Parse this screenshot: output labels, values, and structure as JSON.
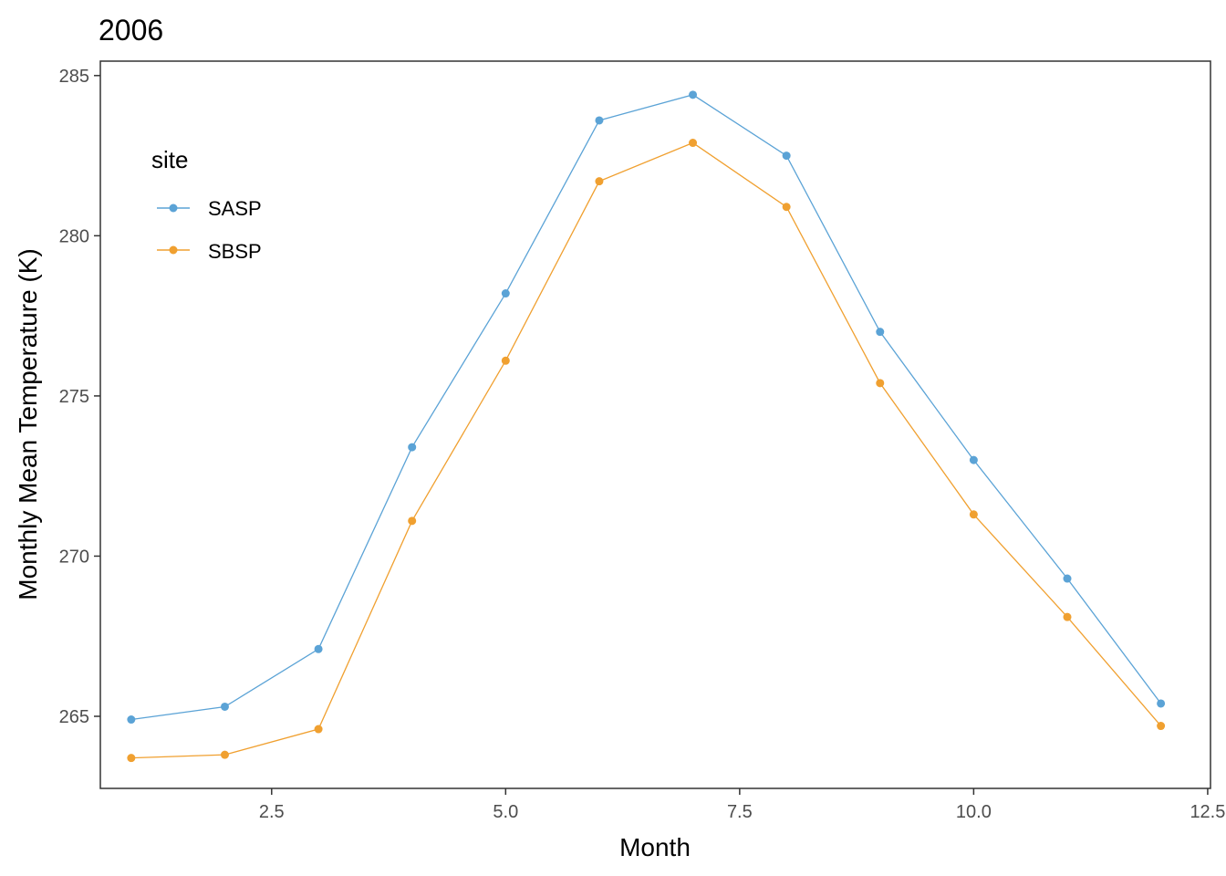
{
  "chart_data": {
    "type": "line",
    "title": "2006",
    "xlabel": "Month",
    "ylabel": "Monthly Mean Temperature (K)",
    "xlim": [
      0.67,
      12.53
    ],
    "ylim": [
      262.75,
      285.45
    ],
    "x_ticks": [
      "2.5",
      "5.0",
      "7.5",
      "10.0",
      "12.5"
    ],
    "y_ticks": [
      "265",
      "270",
      "275",
      "280",
      "285"
    ],
    "x_tick_values": [
      2.5,
      5.0,
      7.5,
      10.0,
      12.5
    ],
    "y_tick_values": [
      265,
      270,
      275,
      280,
      285
    ],
    "grid": false,
    "legend": {
      "title": "site",
      "position": "top-left inside"
    },
    "x": [
      1,
      2,
      3,
      4,
      5,
      6,
      7,
      8,
      9,
      10,
      11,
      12
    ],
    "series": [
      {
        "name": "SASP",
        "color": "#5ba3d6",
        "values": [
          264.9,
          265.3,
          267.1,
          273.4,
          278.2,
          283.6,
          284.4,
          282.5,
          277.0,
          273.0,
          269.3,
          265.4
        ]
      },
      {
        "name": "SBSP",
        "color": "#f0a030",
        "values": [
          263.7,
          263.8,
          264.6,
          271.1,
          276.1,
          281.7,
          282.9,
          280.9,
          275.4,
          271.3,
          268.1,
          264.7
        ]
      }
    ]
  }
}
